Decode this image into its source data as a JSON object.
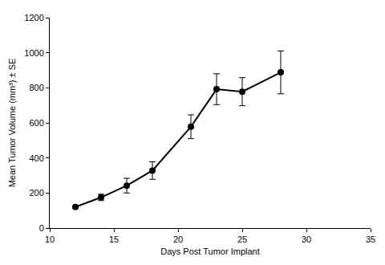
{
  "chart_data": {
    "type": "line",
    "x_label": "Days Post Tumor Implant",
    "y_label": "Mean Tumor Volume (mm³) ± SE",
    "x": [
      12,
      14,
      16,
      18,
      21,
      23,
      25,
      28
    ],
    "values": [
      120,
      175,
      242,
      328,
      578,
      792,
      778,
      888
    ],
    "errors": [
      6,
      18,
      42,
      50,
      68,
      88,
      80,
      122
    ],
    "color": "#000000",
    "marker": "circle",
    "line_style": "solid",
    "xlim": [
      10,
      35
    ],
    "xticks": [
      10,
      15,
      20,
      25,
      30,
      35
    ],
    "ylim": [
      0,
      1200
    ],
    "yticks": [
      0,
      200,
      400,
      600,
      800,
      1000,
      1200
    ],
    "grid": false
  }
}
